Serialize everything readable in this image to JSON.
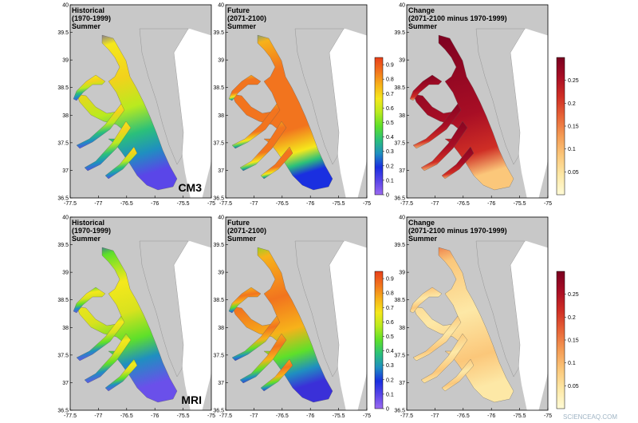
{
  "figure": {
    "rows": [
      {
        "model_label": "CM3",
        "panels": [
          {
            "title_lines": [
              "Historical",
              "(1970-1999)",
              "Summer"
            ],
            "scale": "main",
            "pattern": "hist_cm3"
          },
          {
            "title_lines": [
              "Future",
              "(2071-2100)",
              "Summer"
            ],
            "scale": "main",
            "pattern": "fut_cm3"
          },
          {
            "title_lines": [
              "Change",
              "(2071-2100 minus 1970-1999)",
              "Summer"
            ],
            "scale": "change",
            "pattern": "chg_cm3"
          }
        ]
      },
      {
        "model_label": "MRI",
        "panels": [
          {
            "title_lines": [
              "Historical",
              "(1970-1999)",
              "Summer"
            ],
            "scale": "main",
            "pattern": "hist_mri"
          },
          {
            "title_lines": [
              "Future",
              "(2071-2100)",
              "Summer"
            ],
            "scale": "main",
            "pattern": "fut_mri"
          },
          {
            "title_lines": [
              "Change",
              "(2071-2100 minus 1970-1999)",
              "Summer"
            ],
            "scale": "change",
            "pattern": "chg_mri"
          }
        ]
      }
    ],
    "x_ticks": [
      "-77.5",
      "-77",
      "-76.5",
      "-76",
      "-75.5",
      "-75"
    ],
    "y_ticks": [
      "40",
      "39.5",
      "39",
      "38.5",
      "38",
      "37.5",
      "37",
      "36.5"
    ],
    "main_colorbar": {
      "ticks": [
        "0",
        "0.1",
        "0.2",
        "0.3",
        "0.4",
        "0.5",
        "0.6",
        "0.7",
        "0.8",
        "0.9"
      ],
      "range": [
        0,
        0.95
      ],
      "colors": [
        "#9b6af0",
        "#5a46e8",
        "#1a2fe0",
        "#1f8fc0",
        "#2bc07a",
        "#5ee02a",
        "#b9ea1f",
        "#f5e81c",
        "#f7b21a",
        "#f2741e",
        "#e8401a"
      ]
    },
    "change_colorbar": {
      "ticks": [
        "0.05",
        "0.1",
        "0.15",
        "0.2",
        "0.25"
      ],
      "range": [
        0,
        0.3
      ],
      "colors": [
        "#fffbd6",
        "#fde8a6",
        "#fbc77a",
        "#f49b54",
        "#e76437",
        "#cf2e25",
        "#a80e25",
        "#7a0020"
      ]
    },
    "colors": {
      "land": "#c8c8c8",
      "panel_bg": "#ffffff",
      "frame": "#000000"
    },
    "watermark": "SCIENCEAQ.COM"
  }
}
